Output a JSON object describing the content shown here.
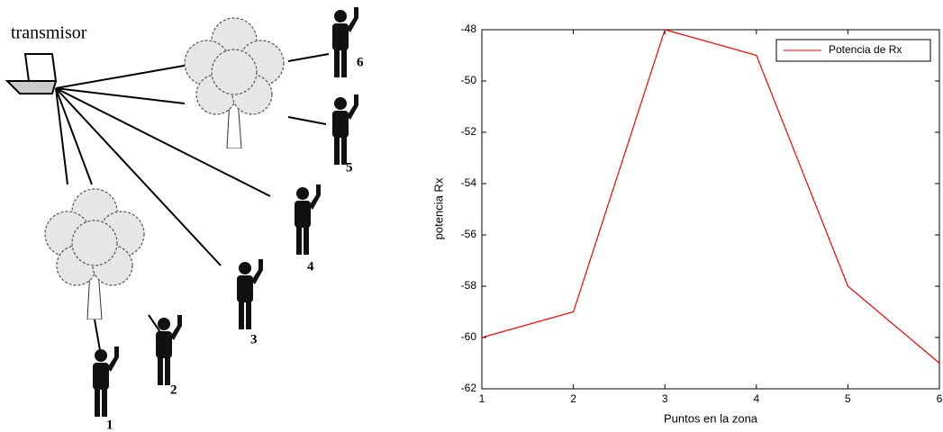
{
  "diagram": {
    "transmitter_label": "transmisor",
    "receivers": [
      {
        "label": "1"
      },
      {
        "label": "2"
      },
      {
        "label": "3"
      },
      {
        "label": "4"
      },
      {
        "label": "5"
      },
      {
        "label": "6"
      }
    ]
  },
  "chart_data": {
    "type": "line",
    "x": [
      1,
      2,
      3,
      4,
      5,
      6
    ],
    "series": [
      {
        "name": "Potencia de Rx",
        "color": "#ff0000",
        "values": [
          -60,
          -59,
          -48,
          -49,
          -58,
          -61
        ]
      }
    ],
    "xlim": [
      1,
      6
    ],
    "xticks": [
      1,
      2,
      3,
      4,
      5,
      6
    ],
    "ylim": [
      -62,
      -48
    ],
    "yticks": [
      -62,
      -60,
      -58,
      -56,
      -54,
      -52,
      -50,
      -48
    ],
    "xlabel": "Puntos en la zona",
    "ylabel": "potencia Rx",
    "legend": "upper right"
  }
}
